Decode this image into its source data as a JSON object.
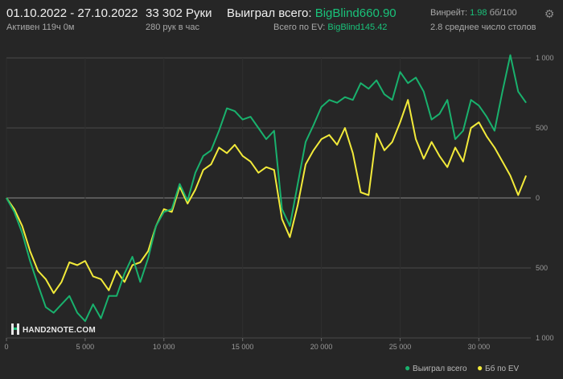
{
  "header": {
    "date_range": "01.10.2022 - 27.10.2022",
    "active": "Активен 119ч 0м",
    "hands": "33 302 Руки",
    "hands_per_hour": "280 рук в час",
    "won_total_label": "Выиграл всего:",
    "won_total_value": "BigBlind660.90",
    "ev_total_label": "Всего по EV:",
    "ev_total_value": "BigBlind145.42",
    "winrate_label": "Винрейт:",
    "winrate_value": "1.98",
    "winrate_unit": "бб/100",
    "tables_text": "2.8 среднее число столов",
    "settings_icon": "gear-icon"
  },
  "logo": {
    "text": "HAND2NOTE.COM"
  },
  "colors": {
    "won": "#19b16d",
    "ev": "#f2ea3a",
    "grid": "#4a4a4a",
    "zero_line": "#8a8a8a"
  },
  "chart_data": {
    "type": "line",
    "x_ticks": [
      "0",
      "5 000",
      "10 000",
      "15 000",
      "20 000",
      "25 000",
      "30 000"
    ],
    "x_tick_values": [
      0,
      5000,
      10000,
      15000,
      20000,
      25000,
      30000
    ],
    "y_ticks": [
      "1 000",
      "500",
      "0",
      "500",
      "1 000"
    ],
    "y_tick_values": [
      1000,
      500,
      0,
      -500,
      -1000
    ],
    "xlim": [
      0,
      33302
    ],
    "ylim": [
      -1000,
      1000
    ],
    "grid": true,
    "legend_position": "bottom-right",
    "series": [
      {
        "name": "Выиграл всего",
        "color": "#19b16d",
        "x": [
          0,
          500,
          1000,
          1500,
          2000,
          2500,
          3000,
          3500,
          4000,
          4500,
          5000,
          5500,
          6000,
          6500,
          7000,
          7500,
          8000,
          8500,
          9000,
          9500,
          10000,
          10500,
          11000,
          11500,
          12000,
          12500,
          13000,
          13500,
          14000,
          14500,
          15000,
          15500,
          16000,
          16500,
          17000,
          17500,
          18000,
          18500,
          19000,
          19500,
          20000,
          20500,
          21000,
          21500,
          22000,
          22500,
          23000,
          23500,
          24000,
          24500,
          25000,
          25500,
          26000,
          26500,
          27000,
          27500,
          28000,
          28500,
          29000,
          29500,
          30000,
          30500,
          31000,
          31500,
          32000,
          32500,
          33000
        ],
        "values": [
          0,
          -100,
          -250,
          -450,
          -620,
          -780,
          -820,
          -760,
          -700,
          -820,
          -880,
          -760,
          -860,
          -700,
          -700,
          -540,
          -420,
          -600,
          -430,
          -200,
          -100,
          -80,
          100,
          -20,
          180,
          300,
          340,
          480,
          640,
          620,
          560,
          580,
          500,
          420,
          480,
          -80,
          -200,
          100,
          400,
          520,
          650,
          700,
          680,
          720,
          700,
          820,
          780,
          840,
          740,
          700,
          900,
          820,
          860,
          760,
          560,
          600,
          700,
          420,
          480,
          700,
          660,
          580,
          480,
          760,
          1020,
          760,
          680
        ]
      },
      {
        "name": "Бб по EV",
        "color": "#f2ea3a",
        "x": [
          0,
          500,
          1000,
          1500,
          2000,
          2500,
          3000,
          3500,
          4000,
          4500,
          5000,
          5500,
          6000,
          6500,
          7000,
          7500,
          8000,
          8500,
          9000,
          9500,
          10000,
          10500,
          11000,
          11500,
          12000,
          12500,
          13000,
          13500,
          14000,
          14500,
          15000,
          15500,
          16000,
          16500,
          17000,
          17500,
          18000,
          18500,
          19000,
          19500,
          20000,
          20500,
          21000,
          21500,
          22000,
          22500,
          23000,
          23500,
          24000,
          24500,
          25000,
          25500,
          26000,
          26500,
          27000,
          27500,
          28000,
          28500,
          29000,
          29500,
          30000,
          30500,
          31000,
          31500,
          32000,
          32500,
          33000
        ],
        "values": [
          0,
          -80,
          -200,
          -380,
          -520,
          -580,
          -680,
          -600,
          -460,
          -480,
          -450,
          -560,
          -580,
          -660,
          -520,
          -600,
          -480,
          -460,
          -380,
          -200,
          -80,
          -100,
          80,
          -40,
          60,
          200,
          240,
          360,
          320,
          380,
          300,
          260,
          180,
          220,
          200,
          -150,
          -280,
          -50,
          240,
          340,
          420,
          450,
          380,
          500,
          320,
          40,
          20,
          460,
          340,
          400,
          540,
          700,
          420,
          280,
          400,
          300,
          220,
          360,
          260,
          500,
          540,
          440,
          360,
          260,
          160,
          20,
          160
        ]
      }
    ]
  }
}
